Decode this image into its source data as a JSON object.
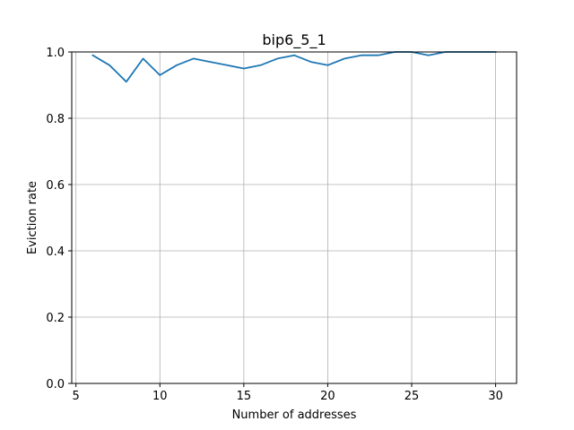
{
  "chart_data": {
    "type": "line",
    "title": "bip6_5_1",
    "xlabel": "Number of addresses",
    "ylabel": "Eviction rate",
    "xlim": [
      4.75,
      31.25
    ],
    "ylim": [
      0.0,
      1.0
    ],
    "xticks": [
      5,
      10,
      15,
      20,
      25,
      30
    ],
    "yticks": [
      0.0,
      0.2,
      0.4,
      0.6,
      0.8,
      1.0
    ],
    "xtick_labels": [
      "5",
      "10",
      "15",
      "20",
      "25",
      "30"
    ],
    "ytick_labels": [
      "0.0",
      "0.2",
      "0.4",
      "0.6",
      "0.8",
      "1.0"
    ],
    "grid": true,
    "series": [
      {
        "color": "#1f77b4",
        "x": [
          6,
          7,
          8,
          9,
          10,
          11,
          12,
          13,
          14,
          15,
          16,
          17,
          18,
          19,
          20,
          21,
          22,
          23,
          24,
          25,
          26,
          27,
          28,
          29,
          30
        ],
        "y": [
          0.99,
          0.96,
          0.91,
          0.98,
          0.93,
          0.96,
          0.98,
          0.97,
          0.96,
          0.95,
          0.96,
          0.98,
          0.99,
          0.97,
          0.96,
          0.98,
          0.99,
          0.99,
          1.0,
          1.0,
          0.99,
          1.0,
          1.0,
          1.0,
          1.0
        ]
      }
    ]
  }
}
